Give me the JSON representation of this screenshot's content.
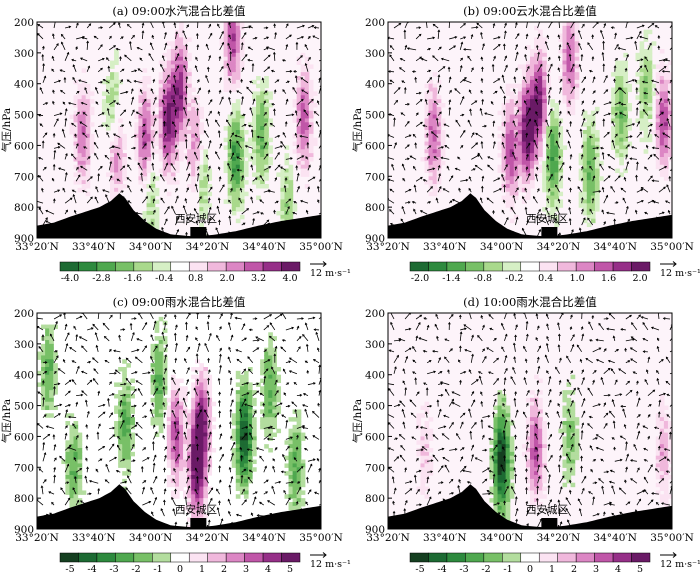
{
  "figure": {
    "x_ticks": [
      "33°20′N",
      "33°40′N",
      "34°00′N",
      "34°20′N",
      "34°40′N",
      "35°00′N"
    ],
    "y_ticks": [
      "200",
      "300",
      "400",
      "500",
      "600",
      "700",
      "800",
      "900"
    ],
    "ylabel": "气压/hPa",
    "city_label": "西安城区",
    "vector_ref": "12 m·s⁻¹"
  },
  "chart_data": [
    {
      "type": "heatmap",
      "title": "(a) 09:00水汽混合比差值",
      "ylim": [
        900,
        200
      ],
      "colorbar_ticks": [
        "-4.0",
        "-2.8",
        "-1.6",
        "-0.4",
        "0.8",
        "2.0",
        "3.2",
        "4.0"
      ],
      "colorbar_colors": [
        "#1d6b33",
        "#2d8a3e",
        "#4fa84f",
        "#78c067",
        "#a9d98c",
        "#d6efc5",
        "#ffffff",
        "#fbe3f2",
        "#f0b8dc",
        "#dc86c4",
        "#c056a8",
        "#962f88",
        "#6a1a66"
      ],
      "positive_regions": [
        {
          "lon": 33.6,
          "p": 565,
          "amp": 2.2
        },
        {
          "lon": 33.8,
          "p": 620,
          "amp": 2.0
        },
        {
          "lon": 33.97,
          "p": 580,
          "amp": 2.8
        },
        {
          "lon": 34.1,
          "p": 520,
          "amp": 3.6
        },
        {
          "lon": 34.17,
          "p": 420,
          "amp": 3.2
        },
        {
          "lon": 34.27,
          "p": 620,
          "amp": 2.4
        },
        {
          "lon": 34.48,
          "p": 260,
          "amp": 2.8
        },
        {
          "lon": 34.9,
          "p": 520,
          "amp": 2.6
        }
      ],
      "negative_regions": [
        {
          "lon": 33.78,
          "p": 480,
          "amp": -1.6
        },
        {
          "lon": 34.0,
          "p": 760,
          "amp": -1.4
        },
        {
          "lon": 34.3,
          "p": 700,
          "amp": -2.0
        },
        {
          "lon": 34.5,
          "p": 640,
          "amp": -3.0
        },
        {
          "lon": 34.65,
          "p": 560,
          "amp": -2.2
        },
        {
          "lon": 34.8,
          "p": 800,
          "amp": -1.4
        }
      ]
    },
    {
      "type": "heatmap",
      "title": "(b) 09:00云水混合比差值",
      "ylim": [
        900,
        200
      ],
      "colorbar_ticks": [
        "-2.0",
        "-1.4",
        "-0.8",
        "-0.2",
        "0.4",
        "1.0",
        "1.6",
        "2.0"
      ],
      "colorbar_colors": [
        "#1d6b33",
        "#2d8a3e",
        "#4fa84f",
        "#78c067",
        "#a9d98c",
        "#d6efc5",
        "#ffffff",
        "#fbe3f2",
        "#f0b8dc",
        "#dc86c4",
        "#c056a8",
        "#962f88",
        "#6a1a66"
      ],
      "positive_regions": [
        {
          "lon": 33.6,
          "p": 570,
          "amp": 1.2
        },
        {
          "lon": 34.05,
          "p": 620,
          "amp": 1.4
        },
        {
          "lon": 34.15,
          "p": 560,
          "amp": 2.0
        },
        {
          "lon": 34.22,
          "p": 460,
          "amp": 1.8
        },
        {
          "lon": 34.4,
          "p": 320,
          "amp": 1.2
        },
        {
          "lon": 34.95,
          "p": 520,
          "amp": 1.4
        }
      ],
      "negative_regions": [
        {
          "lon": 34.3,
          "p": 640,
          "amp": -1.4
        },
        {
          "lon": 34.52,
          "p": 680,
          "amp": -1.2
        },
        {
          "lon": 34.7,
          "p": 500,
          "amp": -1.0
        },
        {
          "lon": 34.85,
          "p": 420,
          "amp": -0.8
        }
      ]
    },
    {
      "type": "heatmap",
      "title": "(c) 09:00雨水混合比差值",
      "ylim": [
        900,
        200
      ],
      "colorbar_ticks": [
        "-5",
        "-4",
        "-3",
        "-2",
        "-1",
        "0",
        "1",
        "2",
        "3",
        "4",
        "5"
      ],
      "colorbar_colors": [
        "#153f20",
        "#1d6b33",
        "#2d8a3e",
        "#4fa84f",
        "#78c067",
        "#b3dd9e",
        "#ffffff",
        "#fbe3f2",
        "#f0b8dc",
        "#dc86c4",
        "#c056a8",
        "#962f88",
        "#6a1a66"
      ],
      "positive_regions": [
        {
          "lon": 34.15,
          "p": 600,
          "amp": 3.5
        },
        {
          "lon": 34.27,
          "p": 700,
          "amp": 5.0
        },
        {
          "lon": 34.3,
          "p": 560,
          "amp": 4.2
        }
      ],
      "negative_regions": [
        {
          "lon": 33.4,
          "p": 380,
          "amp": -2.0
        },
        {
          "lon": 33.55,
          "p": 700,
          "amp": -2.0
        },
        {
          "lon": 33.85,
          "p": 560,
          "amp": -2.2
        },
        {
          "lon": 34.05,
          "p": 420,
          "amp": -2.0
        },
        {
          "lon": 34.55,
          "p": 600,
          "amp": -4.5
        },
        {
          "lon": 34.7,
          "p": 450,
          "amp": -2.0
        },
        {
          "lon": 34.85,
          "p": 700,
          "amp": -2.0
        }
      ]
    },
    {
      "type": "heatmap",
      "title": "(d) 10:00雨水混合比差值",
      "ylim": [
        900,
        200
      ],
      "colorbar_ticks": [
        "-5",
        "-4",
        "-3",
        "-2",
        "-1",
        "0",
        "1",
        "2",
        "3",
        "4",
        "5"
      ],
      "colorbar_colors": [
        "#153f20",
        "#1d6b33",
        "#2d8a3e",
        "#4fa84f",
        "#78c067",
        "#b3dd9e",
        "#ffffff",
        "#fbe3f2",
        "#f0b8dc",
        "#dc86c4",
        "#c056a8",
        "#962f88",
        "#6a1a66"
      ],
      "positive_regions": [
        {
          "lon": 34.2,
          "p": 640,
          "amp": 3.5
        },
        {
          "lon": 33.55,
          "p": 650,
          "amp": 1.2
        },
        {
          "lon": 34.95,
          "p": 650,
          "amp": 1.8
        }
      ],
      "negative_regions": [
        {
          "lon": 34.0,
          "p": 680,
          "amp": -5.0
        },
        {
          "lon": 34.4,
          "p": 600,
          "amp": -1.5
        }
      ]
    }
  ]
}
